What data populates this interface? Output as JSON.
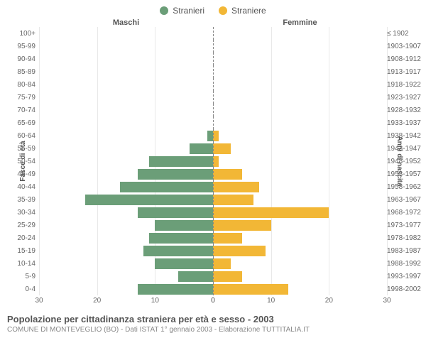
{
  "legend": {
    "male": {
      "label": "Stranieri",
      "color": "#6b9e78"
    },
    "female": {
      "label": "Straniere",
      "color": "#f2b736"
    }
  },
  "headers": {
    "left": "Maschi",
    "right": "Femmine"
  },
  "axis_labels": {
    "left": "Fasce di età",
    "right": "Anni di nascita"
  },
  "chart": {
    "type": "population-pyramid",
    "x_max": 30,
    "x_ticks": [
      0,
      10,
      20,
      30
    ],
    "bar_color_male": "#6b9e78",
    "bar_color_female": "#f2b736",
    "grid_color": "#e8e8e8",
    "background_color": "#ffffff",
    "center_line_color": "#888888",
    "rows": [
      {
        "age": "100+",
        "birth": "≤ 1902",
        "m": 0,
        "f": 0
      },
      {
        "age": "95-99",
        "birth": "1903-1907",
        "m": 0,
        "f": 0
      },
      {
        "age": "90-94",
        "birth": "1908-1912",
        "m": 0,
        "f": 0
      },
      {
        "age": "85-89",
        "birth": "1913-1917",
        "m": 0,
        "f": 0
      },
      {
        "age": "80-84",
        "birth": "1918-1922",
        "m": 0,
        "f": 0
      },
      {
        "age": "75-79",
        "birth": "1923-1927",
        "m": 0,
        "f": 0
      },
      {
        "age": "70-74",
        "birth": "1928-1932",
        "m": 0,
        "f": 0
      },
      {
        "age": "65-69",
        "birth": "1933-1937",
        "m": 0,
        "f": 0
      },
      {
        "age": "60-64",
        "birth": "1938-1942",
        "m": 1,
        "f": 1
      },
      {
        "age": "55-59",
        "birth": "1943-1947",
        "m": 4,
        "f": 3
      },
      {
        "age": "50-54",
        "birth": "1948-1952",
        "m": 11,
        "f": 1
      },
      {
        "age": "45-49",
        "birth": "1953-1957",
        "m": 13,
        "f": 5
      },
      {
        "age": "40-44",
        "birth": "1958-1962",
        "m": 16,
        "f": 8
      },
      {
        "age": "35-39",
        "birth": "1963-1967",
        "m": 22,
        "f": 7
      },
      {
        "age": "30-34",
        "birth": "1968-1972",
        "m": 13,
        "f": 20
      },
      {
        "age": "25-29",
        "birth": "1973-1977",
        "m": 10,
        "f": 10
      },
      {
        "age": "20-24",
        "birth": "1978-1982",
        "m": 11,
        "f": 5
      },
      {
        "age": "15-19",
        "birth": "1983-1987",
        "m": 12,
        "f": 9
      },
      {
        "age": "10-14",
        "birth": "1988-1992",
        "m": 10,
        "f": 3
      },
      {
        "age": "5-9",
        "birth": "1993-1997",
        "m": 6,
        "f": 5
      },
      {
        "age": "0-4",
        "birth": "1998-2002",
        "m": 13,
        "f": 13
      }
    ]
  },
  "footer": {
    "title": "Popolazione per cittadinanza straniera per età e sesso - 2003",
    "subtitle": "COMUNE DI MONTEVEGLIO (BO) - Dati ISTAT 1° gennaio 2003 - Elaborazione TUTTITALIA.IT"
  }
}
